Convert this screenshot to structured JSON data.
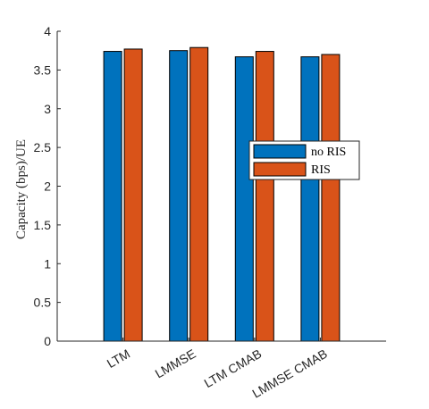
{
  "chart_data": {
    "type": "bar",
    "categories": [
      "LTM",
      "LMMSE",
      "LTM CMAB",
      "LMMSE CMAB"
    ],
    "series": [
      {
        "name": "no RIS",
        "values": [
          3.74,
          3.75,
          3.67,
          3.67
        ],
        "color": "#0072BD"
      },
      {
        "name": "RIS",
        "values": [
          3.77,
          3.79,
          3.74,
          3.7
        ],
        "color": "#D95319"
      }
    ],
    "title": "",
    "xlabel": "",
    "ylabel": "Capacity (bps)/UE",
    "ylim": [
      0,
      4
    ],
    "yticks": [
      "0",
      "0.5",
      "1",
      "1.5",
      "2",
      "2.5",
      "3",
      "3.5",
      "4"
    ],
    "grid": false,
    "legend_position": "right"
  }
}
